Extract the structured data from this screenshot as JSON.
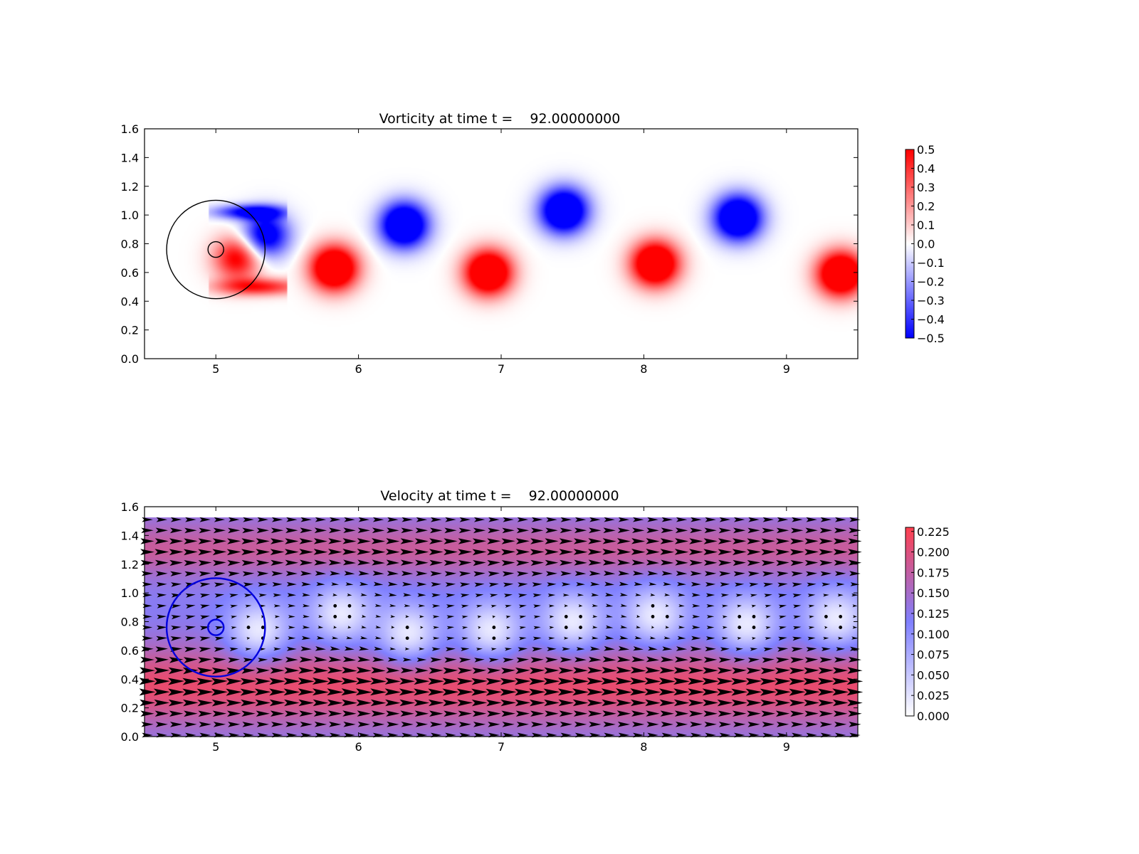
{
  "chart_data": [
    {
      "type": "heatmap",
      "title": "Vorticity at time t =    92.00000000",
      "xlim": [
        4.5,
        9.5
      ],
      "ylim": [
        0.0,
        1.6
      ],
      "x_ticks": [
        "5",
        "6",
        "7",
        "8",
        "9"
      ],
      "y_ticks": [
        "0.0",
        "0.2",
        "0.4",
        "0.6",
        "0.8",
        "1.0",
        "1.2",
        "1.4",
        "1.6"
      ],
      "colormap": [
        "#0000ff",
        "#ffffff",
        "#ff0000"
      ],
      "colorbar": {
        "range": [
          -0.5,
          0.5
        ],
        "ticks": [
          "−0.5",
          "−0.4",
          "−0.3",
          "−0.2",
          "−0.1",
          "0.0",
          "0.1",
          "0.2",
          "0.3",
          "0.4",
          "0.5"
        ]
      },
      "vortices": [
        {
          "x": 5.35,
          "y": 0.86,
          "sign": -1,
          "strength": 0.7
        },
        {
          "x": 5.15,
          "y": 0.7,
          "sign": 1,
          "strength": 0.6
        },
        {
          "x": 5.83,
          "y": 0.63,
          "sign": 1,
          "strength": 1.0
        },
        {
          "x": 6.32,
          "y": 0.93,
          "sign": -1,
          "strength": 1.0
        },
        {
          "x": 6.91,
          "y": 0.6,
          "sign": 1,
          "strength": 1.0
        },
        {
          "x": 7.44,
          "y": 1.03,
          "sign": -1,
          "strength": 1.0
        },
        {
          "x": 8.08,
          "y": 0.66,
          "sign": 1,
          "strength": 1.0
        },
        {
          "x": 8.66,
          "y": 0.98,
          "sign": -1,
          "strength": 1.0
        },
        {
          "x": 9.38,
          "y": 0.59,
          "sign": 1,
          "strength": 1.0
        }
      ],
      "circles": [
        {
          "cx": 5.0,
          "cy": 0.76,
          "r": 0.345,
          "color": "#000000"
        },
        {
          "cx": 5.0,
          "cy": 0.76,
          "r": 0.055,
          "color": "#000000"
        }
      ]
    },
    {
      "type": "heatmap",
      "title": "Velocity at time t =    92.00000000",
      "xlim": [
        4.5,
        9.5
      ],
      "ylim": [
        0.0,
        1.6
      ],
      "field_ylim": [
        0.0,
        1.52
      ],
      "x_ticks": [
        "5",
        "6",
        "7",
        "8",
        "9"
      ],
      "y_ticks": [
        "0.0",
        "0.2",
        "0.4",
        "0.6",
        "0.8",
        "1.0",
        "1.2",
        "1.4",
        "1.6"
      ],
      "colormap": [
        "#ffffff",
        "#8080ff",
        "#ff4050"
      ],
      "colorbar": {
        "range": [
          0.0,
          0.23
        ],
        "ticks": [
          "0.000",
          "0.025",
          "0.050",
          "0.075",
          "0.100",
          "0.125",
          "0.150",
          "0.175",
          "0.200",
          "0.225"
        ]
      },
      "quiver": true,
      "circles": [
        {
          "cx": 5.0,
          "cy": 0.76,
          "r": 0.345,
          "color": "#0000dd"
        },
        {
          "cx": 5.0,
          "cy": 0.76,
          "r": 0.055,
          "color": "#0000dd"
        }
      ]
    }
  ]
}
